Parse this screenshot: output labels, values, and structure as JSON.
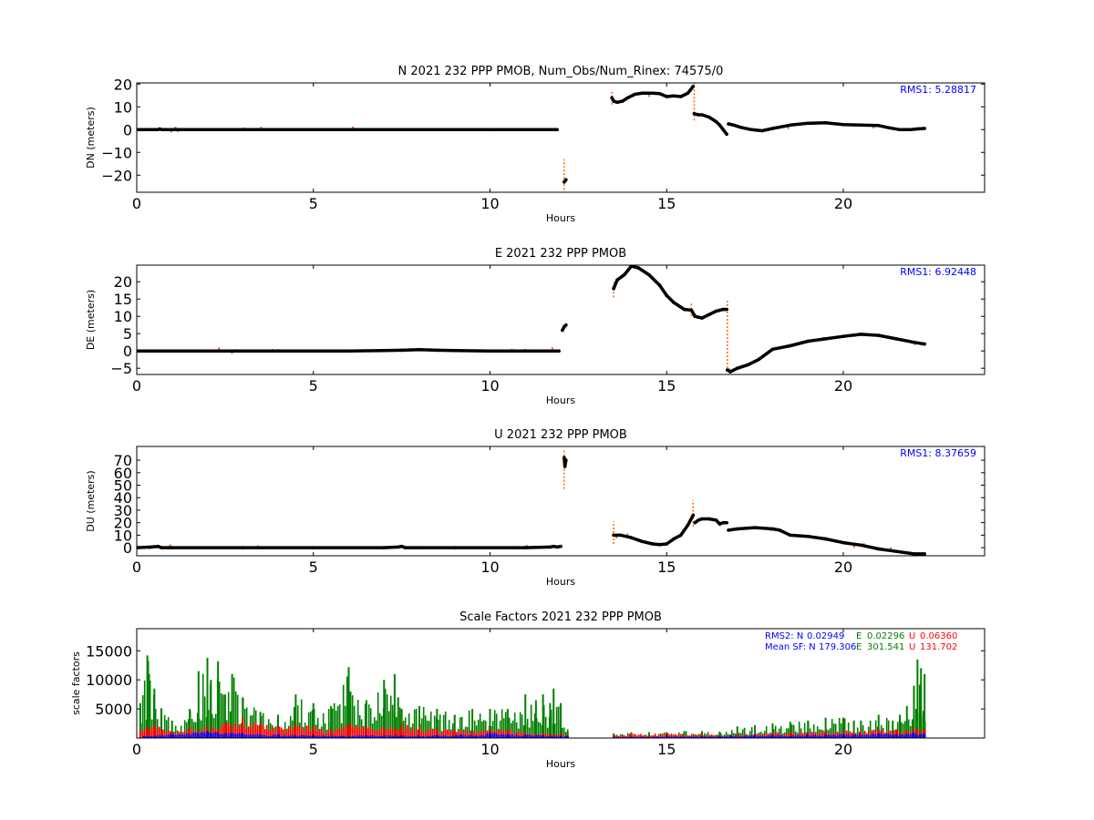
{
  "chart_data": [
    {
      "type": "scatter",
      "title": "N 2021 232 PPP  PMOB, Num_Obs/Num_Rinex: 74575/0",
      "xlabel": "Hours",
      "ylabel": "DN (meters)",
      "xlim": [
        0,
        24
      ],
      "ylim": [
        -27.5,
        20.5
      ],
      "xticks": [
        0,
        5,
        10,
        15,
        20
      ],
      "yticks": [
        -20,
        -10,
        0,
        10,
        20
      ],
      "annotation": "RMS1:  5.28817",
      "annotation_color": "#0000ff",
      "legend": "none",
      "grid": false,
      "series": [
        {
          "color": "#000000",
          "jitter_color": "#ff6600",
          "x": [
            0,
            0.6,
            0.65,
            0.7,
            2,
            4,
            6,
            8,
            10,
            11.9,
            null,
            12.1,
            12.15,
            null,
            13.45,
            13.5,
            13.6,
            13.75,
            13.9,
            14.1,
            14.3,
            14.6,
            14.8,
            15,
            15.2,
            15.4,
            15.6,
            15.75,
            null,
            15.78,
            15.9,
            16,
            16.2,
            16.4,
            16.5,
            16.6,
            16.7,
            null,
            16.75,
            16.9,
            17.1,
            17.4,
            17.7,
            18,
            18.5,
            19,
            19.5,
            20,
            20.5,
            21,
            21.3,
            21.6,
            21.9,
            22.1,
            22.3
          ],
          "y": [
            0,
            0,
            0.3,
            0,
            0,
            0,
            0,
            0,
            0,
            0,
            null,
            -23,
            -22,
            null,
            14,
            12.5,
            12,
            12.5,
            14,
            15.5,
            16,
            16,
            15.8,
            14.5,
            14.8,
            14.5,
            16,
            19,
            null,
            7,
            6.5,
            6.5,
            5.5,
            3.5,
            2,
            0,
            -2,
            null,
            2.5,
            2,
            1,
            0,
            -0.5,
            0.5,
            2,
            2.8,
            3,
            2.2,
            2,
            1.8,
            0.8,
            0,
            0,
            0.3,
            0.5
          ]
        }
      ],
      "spikes": [
        {
          "x": 12.1,
          "y1": -28,
          "y2": -13
        },
        {
          "x": 13.45,
          "y1": 11,
          "y2": 17.5
        },
        {
          "x": 15.78,
          "y1": 4,
          "y2": 21
        }
      ]
    },
    {
      "type": "scatter",
      "title": "E 2021 232 PPP  PMOB",
      "xlabel": "Hours",
      "ylabel": "DE (meters)",
      "xlim": [
        0,
        24
      ],
      "ylim": [
        -6.8,
        24.8
      ],
      "xticks": [
        0,
        5,
        10,
        15,
        20
      ],
      "yticks": [
        -5,
        0,
        5,
        10,
        15,
        20
      ],
      "annotation": "RMS1:  6.92448",
      "annotation_color": "#0000ff",
      "legend": "none",
      "grid": false,
      "series": [
        {
          "color": "#000000",
          "jitter_color": "#ff6600",
          "x": [
            0,
            2,
            4,
            6,
            7,
            7.5,
            8,
            8.5,
            9,
            10,
            11,
            11.95,
            null,
            12.05,
            12.1,
            12.15,
            null,
            13.5,
            13.6,
            13.8,
            14,
            14.2,
            14.5,
            14.8,
            15,
            15.2,
            15.5,
            15.7,
            15.8,
            16,
            16.2,
            16.4,
            16.6,
            16.7,
            null,
            16.72,
            16.8,
            17,
            17.3,
            17.6,
            18,
            18.5,
            19,
            19.5,
            20,
            20.5,
            21,
            21.5,
            22,
            22.3
          ],
          "y": [
            0,
            0,
            0,
            0,
            0.1,
            0.2,
            0.4,
            0.2,
            0.1,
            0,
            0,
            0,
            null,
            6,
            7,
            7.5,
            null,
            18,
            20.5,
            22,
            24.5,
            24,
            22,
            19,
            16,
            14,
            12,
            11.8,
            10,
            9.5,
            10.5,
            11.5,
            12,
            12,
            null,
            -5.5,
            -6,
            -5,
            -4,
            -2.5,
            0.5,
            1.5,
            2.8,
            3.5,
            4.2,
            4.8,
            4.5,
            3.5,
            2.5,
            2
          ]
        }
      ],
      "spikes": [
        {
          "x": 13.5,
          "y1": 15.5,
          "y2": 20
        },
        {
          "x": 15.7,
          "y1": 10,
          "y2": 14
        },
        {
          "x": 16.72,
          "y1": -6,
          "y2": 14.5
        }
      ]
    },
    {
      "type": "scatter",
      "title": "U 2021 232 PPP  PMOB",
      "xlabel": "Hours",
      "ylabel": "DU (meters)",
      "xlim": [
        0,
        24
      ],
      "ylim": [
        -6.5,
        81
      ],
      "xticks": [
        0,
        5,
        10,
        15,
        20
      ],
      "yticks": [
        0,
        10,
        20,
        30,
        40,
        50,
        60,
        70
      ],
      "annotation": "RMS1:  8.37659",
      "annotation_color": "#0000ff",
      "legend": "none",
      "grid": false,
      "series": [
        {
          "color": "#000000",
          "jitter_color": "#ff6600",
          "x": [
            0,
            0.4,
            0.6,
            0.7,
            1,
            3,
            5,
            7,
            7.4,
            7.5,
            7.6,
            9,
            11,
            11.7,
            11.8,
            11.9,
            12,
            null,
            12.1,
            12.12,
            12.15,
            null,
            13.5,
            13.7,
            14,
            14.3,
            14.6,
            14.8,
            15,
            15.2,
            15.4,
            15.6,
            15.75,
            null,
            15.8,
            15.9,
            16,
            16.2,
            16.4,
            16.5,
            16.6,
            16.7,
            null,
            16.75,
            17,
            17.5,
            18,
            18.2,
            18.5,
            19,
            19.5,
            20,
            20.5,
            21,
            21.5,
            22,
            22.3
          ],
          "y": [
            0,
            0.5,
            1,
            0,
            0,
            0,
            0,
            0,
            0.5,
            1,
            0,
            0,
            0,
            0.5,
            1,
            0.5,
            1,
            null,
            72,
            65,
            70,
            null,
            10,
            10,
            8,
            5,
            3,
            2.5,
            3,
            7,
            10,
            18,
            26,
            null,
            20,
            22,
            23,
            23,
            22,
            19,
            20,
            20,
            null,
            14,
            15,
            16,
            15,
            14,
            10,
            9,
            7,
            4,
            2,
            -1,
            -3,
            -5,
            -5
          ]
        }
      ],
      "spikes": [
        {
          "x": 12.1,
          "y1": 47,
          "y2": 79
        },
        {
          "x": 13.5,
          "y1": 3,
          "y2": 21
        },
        {
          "x": 15.75,
          "y1": 17,
          "y2": 38
        }
      ]
    },
    {
      "type": "bar",
      "title": "Scale Factors 2021 232 PPP  PMOB",
      "xlabel": "Hours",
      "ylabel": "scale factors",
      "xlim": [
        0,
        24
      ],
      "ylim": [
        0,
        18800
      ],
      "xticks": [
        0,
        5,
        10,
        15,
        20
      ],
      "yticks": [
        5000,
        10000,
        15000
      ],
      "legend": "none",
      "grid": false,
      "stats": {
        "rms2_label": "RMS2: N",
        "rms2_n": "0.02949",
        "rms2_e_label": "E",
        "rms2_e": "0.02296",
        "rms2_u_label": "U",
        "rms2_u": "0.06360",
        "mean_label": "Mean SF: N",
        "mean_n": "179.306",
        "mean_e_label": "E",
        "mean_e": "301.541",
        "mean_u_label": "U",
        "mean_u": "131.702"
      },
      "series": [
        {
          "name": "N",
          "color": "#0000ff",
          "x": [
            0.2,
            1,
            2,
            3,
            4,
            5,
            5.8,
            6.5,
            7.5,
            8.5,
            9.2,
            9.6,
            10,
            10.5,
            11,
            11.5,
            12,
            12.2,
            null,
            13.5,
            14,
            15,
            16,
            16.8,
            17.5,
            18,
            19,
            20,
            21,
            21.5,
            22,
            22.3
          ],
          "values": [
            400,
            700,
            1200,
            900,
            600,
            500,
            400,
            500,
            450,
            500,
            600,
            400,
            1000,
            700,
            600,
            500,
            400,
            300,
            null,
            200,
            250,
            300,
            300,
            400,
            500,
            500,
            600,
            700,
            800,
            700,
            900,
            800
          ]
        },
        {
          "name": "E",
          "color": "#008000",
          "x": [
            0.1,
            0.3,
            0.35,
            0.5,
            0.7,
            1,
            1.5,
            1.75,
            2,
            2.1,
            2.3,
            2.5,
            2.7,
            3,
            3.5,
            4,
            4.5,
            5,
            5.5,
            6,
            6.05,
            6.5,
            7,
            7.3,
            7.4,
            7.5,
            8,
            8.5,
            9,
            9.5,
            10,
            10.5,
            11,
            11.3,
            11.5,
            11.7,
            11.8,
            12,
            12.2,
            null,
            13.5,
            14,
            14.5,
            15,
            15.5,
            16,
            16.5,
            17,
            17.5,
            18,
            18.5,
            19,
            19.5,
            20,
            20.3,
            20.5,
            21,
            21.4,
            21.6,
            21.8,
            22,
            22.1,
            22.2,
            22.3
          ],
          "values": [
            6000,
            14200,
            11000,
            8500,
            5000,
            3000,
            5000,
            11500,
            13800,
            10000,
            13200,
            7500,
            11000,
            7000,
            4500,
            4000,
            7500,
            6000,
            5500,
            12200,
            8000,
            6500,
            10000,
            11000,
            7000,
            5000,
            5500,
            5000,
            4000,
            5000,
            5000,
            5000,
            7500,
            6500,
            7500,
            6000,
            8500,
            6000,
            1000,
            null,
            800,
            1000,
            1000,
            1000,
            1200,
            1200,
            1100,
            2000,
            2200,
            2500,
            2800,
            3000,
            3500,
            3500,
            3000,
            3000,
            4000,
            3000,
            4000,
            5500,
            9000,
            13500,
            12000,
            11000
          ]
        },
        {
          "name": "U",
          "color": "#ff0000",
          "x": [
            0.1,
            0.3,
            0.5,
            1,
            1.5,
            2,
            2.5,
            3,
            3.5,
            4,
            4.5,
            5,
            5.5,
            6,
            6.5,
            7,
            7.5,
            8,
            8.5,
            9,
            9.5,
            10,
            10.5,
            11,
            11.5,
            12,
            12.2,
            null,
            13.5,
            14,
            15,
            16,
            16.8,
            17,
            17.5,
            18,
            18.5,
            19,
            19.5,
            20,
            20.5,
            21,
            21.5,
            22,
            22.3
          ],
          "values": [
            1500,
            2000,
            2500,
            1000,
            1800,
            2000,
            2500,
            3500,
            2500,
            2000,
            2500,
            2000,
            1500,
            2500,
            2000,
            2000,
            2500,
            2000,
            1500,
            1500,
            1200,
            1500,
            1500,
            1000,
            1000,
            800,
            500,
            null,
            500,
            700,
            800,
            700,
            500,
            700,
            800,
            900,
            1000,
            1100,
            1200,
            1300,
            1300,
            1500,
            1500,
            1700,
            1500
          ]
        }
      ]
    }
  ]
}
